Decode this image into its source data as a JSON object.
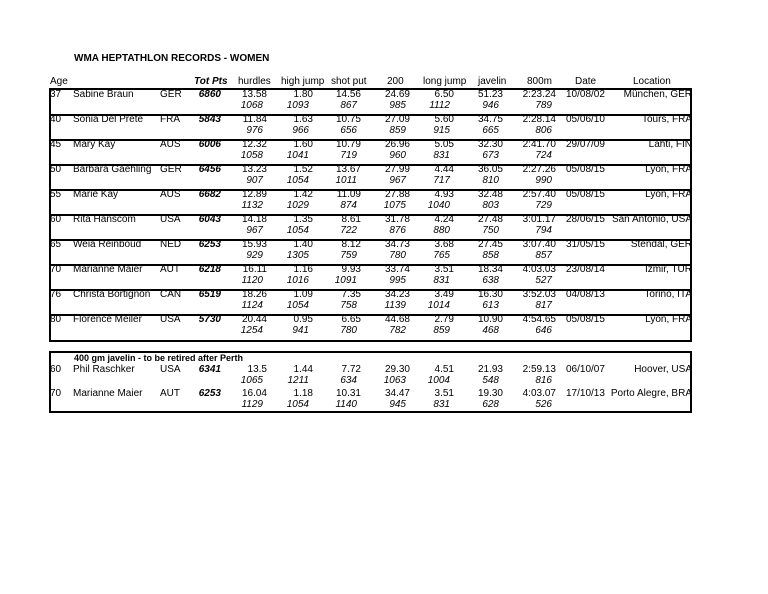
{
  "title": "WMA  HEPTATHLON RECORDS - WOMEN",
  "headers": {
    "age": "Age",
    "tot": "Tot Pts",
    "hurdles": "hurdles",
    "high_jump": "high jump",
    "shot_put": "shot put",
    "d200": "200",
    "long_jump": "long jump",
    "javelin": "javelin",
    "d800": "800m",
    "date": "Date",
    "location": "Location"
  },
  "records": [
    {
      "age": "37",
      "name": "Sabine Braun",
      "nat": "GER",
      "tot": "6860",
      "hurdles": "13.58",
      "hj": "1.80",
      "sp": "14.56",
      "d200": "24.69",
      "lj": "6.50",
      "jav": "51.23",
      "d800": "2:23.24",
      "date": "10/08/02",
      "loc": "München, GER",
      "p": {
        "hurdles": "1068",
        "hj": "1093",
        "sp": "867",
        "d200": "985",
        "lj": "1112",
        "jav": "946",
        "d800": "789"
      }
    },
    {
      "age": "40",
      "name": "Sonia Del Prete",
      "nat": "FRA",
      "tot": "5843",
      "hurdles": "11.84",
      "hj": "1.63",
      "sp": "10.75",
      "d200": "27.09",
      "lj": "5.60",
      "jav": "34.75",
      "d800": "2:28.14",
      "date": "05/06/10",
      "loc": "Tours, FRA",
      "p": {
        "hurdles": "976",
        "hj": "966",
        "sp": "656",
        "d200": "859",
        "lj": "915",
        "jav": "665",
        "d800": "806"
      }
    },
    {
      "age": "45",
      "name": "Mary Kay",
      "nat": "AUS",
      "tot": "6006",
      "hurdles": "12.32",
      "hj": "1.60",
      "sp": "10.79",
      "d200": "26.96",
      "lj": "5.05",
      "jav": "32.30",
      "d800": "2:41.70",
      "date": "29/07/09",
      "loc": "Lahti, FIN",
      "p": {
        "hurdles": "1058",
        "hj": "1041",
        "sp": "719",
        "d200": "960",
        "lj": "831",
        "jav": "673",
        "d800": "724"
      }
    },
    {
      "age": "50",
      "name": "Barbara Gaehling",
      "nat": "GER",
      "tot": "6456",
      "hurdles": "13.23",
      "hj": "1.52",
      "sp": "13.67",
      "d200": "27.99",
      "lj": "4.44",
      "jav": "36.05",
      "d800": "2:27.26",
      "date": "05/08/15",
      "loc": "Lyon, FRA",
      "p": {
        "hurdles": "907",
        "hj": "1054",
        "sp": "1011",
        "d200": "967",
        "lj": "717",
        "jav": "810",
        "d800": "990"
      }
    },
    {
      "age": "55",
      "name": "Marie Kay",
      "nat": "AUS",
      "tot": "6682",
      "hurdles": "12.89",
      "hj": "1.42",
      "sp": "11.09",
      "d200": "27.88",
      "lj": "4.93",
      "jav": "32.48",
      "d800": "2:57.40",
      "date": "05/08/15",
      "loc": "Lyon, FRA",
      "p": {
        "hurdles": "1132",
        "hj": "1029",
        "sp": "874",
        "d200": "1075",
        "lj": "1040",
        "jav": "803",
        "d800": "729"
      }
    },
    {
      "age": "60",
      "name": "Rita Hanscom",
      "nat": "USA",
      "tot": "6043",
      "hurdles": "14.18",
      "hj": "1.35",
      "sp": "8.61",
      "d200": "31.78",
      "lj": "4.24",
      "jav": "27.48",
      "d800": "3:01.17",
      "date": "28/06/15",
      "loc": "San Antonio, USA",
      "p": {
        "hurdles": "967",
        "hj": "1054",
        "sp": "722",
        "d200": "876",
        "lj": "880",
        "jav": "750",
        "d800": "794"
      }
    },
    {
      "age": "65",
      "name": "Weia Reinboud",
      "nat": "NED",
      "tot": "6253",
      "hurdles": "15.93",
      "hj": "1.40",
      "sp": "8.12",
      "d200": "34.73",
      "lj": "3.68",
      "jav": "27.45",
      "d800": "3:07.40",
      "date": "31/05/15",
      "loc": "Stendal, GER",
      "p": {
        "hurdles": "929",
        "hj": "1305",
        "sp": "759",
        "d200": "780",
        "lj": "765",
        "jav": "858",
        "d800": "857"
      }
    },
    {
      "age": "70",
      "name": "Marianne Maier",
      "nat": "AUT",
      "tot": "6218",
      "hurdles": "16.11",
      "hj": "1.16",
      "sp": "9.93",
      "d200": "33.74",
      "lj": "3.51",
      "jav": "18.34",
      "d800": "4:03.03",
      "date": "23/08/14",
      "loc": "Izmir, TUR",
      "p": {
        "hurdles": "1120",
        "hj": "1016",
        "sp": "1091",
        "d200": "995",
        "lj": "831",
        "jav": "638",
        "d800": "527"
      }
    },
    {
      "age": "76",
      "name": "Christa Bortignon",
      "nat": "CAN",
      "tot": "6519",
      "hurdles": "18.26",
      "hj": "1.09",
      "sp": "7.35",
      "d200": "34.23",
      "lj": "3.49",
      "jav": "16.30",
      "d800": "3:52.03",
      "date": "04/08/13",
      "loc": "Torino, ITA",
      "p": {
        "hurdles": "1124",
        "hj": "1054",
        "sp": "758",
        "d200": "1139",
        "lj": "1014",
        "jav": "613",
        "d800": "817"
      }
    },
    {
      "age": "80",
      "name": "Florence Meiler",
      "nat": "USA",
      "tot": "5730",
      "hurdles": "20.44",
      "hj": "0.95",
      "sp": "6.65",
      "d200": "44.68",
      "lj": "2.79",
      "jav": "10.90",
      "d800": "4:54.65",
      "date": "05/08/15",
      "loc": "Lyon, FRA",
      "p": {
        "hurdles": "1254",
        "hj": "941",
        "sp": "780",
        "d200": "782",
        "lj": "859",
        "jav": "468",
        "d800": "646"
      }
    }
  ],
  "note": "400 gm javelin - to be retired after Perth",
  "old_records": [
    {
      "age": "60",
      "name": "Phil Raschker",
      "nat": "USA",
      "tot": "6341",
      "hurdles": "13.5",
      "hj": "1.44",
      "sp": "7.72",
      "d200": "29.30",
      "lj": "4.51",
      "jav": "21.93",
      "d800": "2:59.13",
      "date": "06/10/07",
      "loc": "Hoover, USA",
      "p": {
        "hurdles": "1065",
        "hj": "1211",
        "sp": "634",
        "d200": "1063",
        "lj": "1004",
        "jav": "548",
        "d800": "816"
      }
    },
    {
      "age": "70",
      "name": "Marianne Maier",
      "nat": "AUT",
      "tot": "6253",
      "hurdles": "16.04",
      "hj": "1.18",
      "sp": "10.31",
      "d200": "34.47",
      "lj": "3.51",
      "jav": "19.30",
      "d800": "4:03.07",
      "date": "17/10/13",
      "loc": "Porto Alegre, BRA",
      "p": {
        "hurdles": "1129",
        "hj": "1054",
        "sp": "1140",
        "d200": "945",
        "lj": "831",
        "jav": "628",
        "d800": "526"
      }
    }
  ]
}
